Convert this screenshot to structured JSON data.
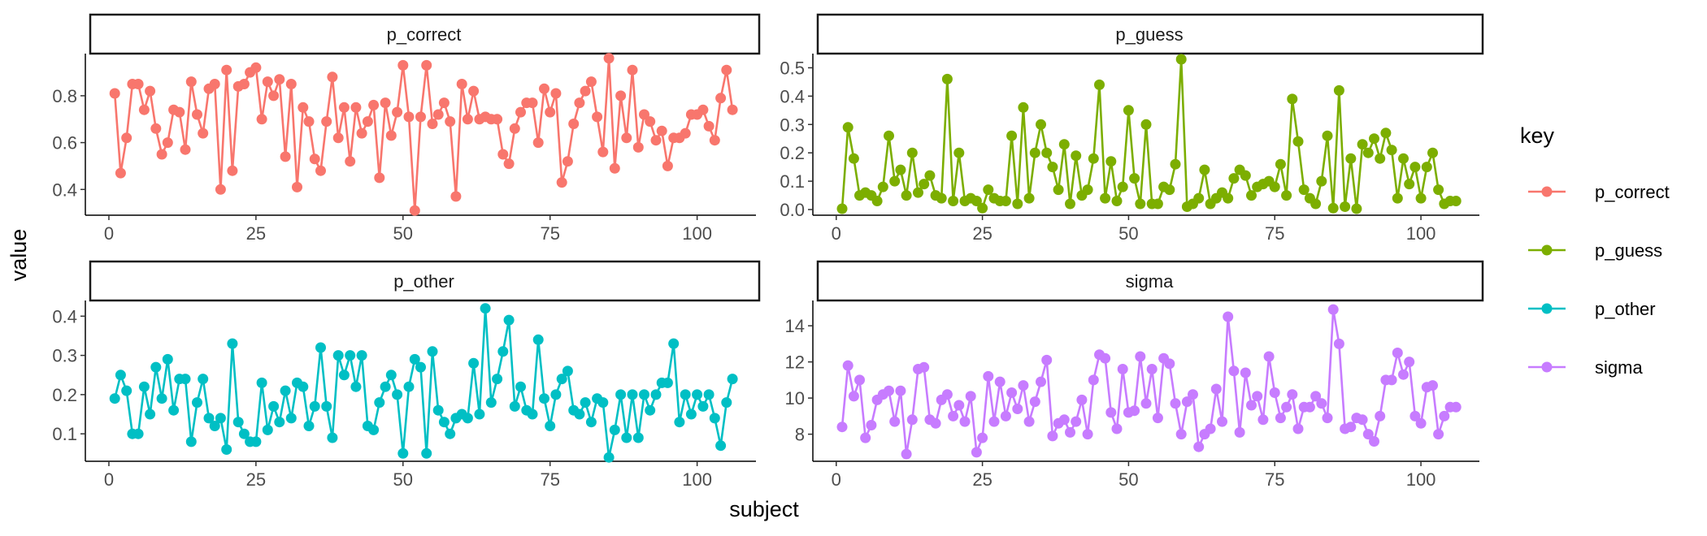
{
  "chart_data": {
    "type": "line",
    "layout": "facet_wrap",
    "xlabel": "subject",
    "ylabel": "value",
    "legend": {
      "title": "key",
      "position": "right"
    },
    "grid": false,
    "x": [
      1,
      2,
      3,
      4,
      5,
      6,
      7,
      8,
      9,
      10,
      11,
      12,
      13,
      14,
      15,
      16,
      17,
      18,
      19,
      20,
      21,
      22,
      23,
      24,
      25,
      26,
      27,
      28,
      29,
      30,
      31,
      32,
      33,
      34,
      35,
      36,
      37,
      38,
      39,
      40,
      41,
      42,
      43,
      44,
      45,
      46,
      47,
      48,
      49,
      50,
      51,
      52,
      53,
      54,
      55,
      56,
      57,
      58,
      59,
      60,
      61,
      62,
      63,
      64,
      65,
      66,
      67,
      68,
      69,
      70,
      71,
      72,
      73,
      74,
      75,
      76,
      77,
      78,
      79,
      80,
      81,
      82,
      83,
      84,
      85,
      86,
      87,
      88,
      89,
      90,
      91,
      92,
      93,
      94,
      95,
      96,
      97,
      98,
      99,
      100,
      101,
      102,
      103,
      104,
      105,
      106
    ],
    "facets": [
      {
        "strip": "p_correct",
        "series": "p_correct",
        "color": "#F8766D",
        "xlim": [
          -4,
          110
        ],
        "ylim": [
          0.29,
          0.98
        ],
        "xticks": [
          0,
          25,
          50,
          75,
          100
        ],
        "yticks": [
          0.4,
          0.6,
          0.8
        ],
        "ytick_labels": [
          "0.4",
          "0.6",
          "0.8"
        ],
        "values": [
          0.81,
          0.47,
          0.62,
          0.85,
          0.85,
          0.74,
          0.82,
          0.66,
          0.55,
          0.6,
          0.74,
          0.73,
          0.57,
          0.86,
          0.72,
          0.64,
          0.83,
          0.85,
          0.4,
          0.91,
          0.48,
          0.84,
          0.85,
          0.9,
          0.92,
          0.7,
          0.86,
          0.8,
          0.87,
          0.54,
          0.85,
          0.41,
          0.75,
          0.69,
          0.53,
          0.48,
          0.69,
          0.88,
          0.62,
          0.75,
          0.52,
          0.75,
          0.64,
          0.69,
          0.76,
          0.45,
          0.77,
          0.63,
          0.73,
          0.93,
          0.71,
          0.31,
          0.71,
          0.93,
          0.68,
          0.72,
          0.77,
          0.69,
          0.37,
          0.85,
          0.7,
          0.82,
          0.7,
          0.71,
          0.7,
          0.7,
          0.55,
          0.51,
          0.66,
          0.73,
          0.77,
          0.77,
          0.6,
          0.83,
          0.73,
          0.81,
          0.43,
          0.52,
          0.68,
          0.77,
          0.82,
          0.86,
          0.71,
          0.56,
          0.96,
          0.49,
          0.8,
          0.62,
          0.91,
          0.58,
          0.72,
          0.69,
          0.61,
          0.65,
          0.5,
          0.62,
          0.62,
          0.64,
          0.72,
          0.72,
          0.74,
          0.67,
          0.61,
          0.79,
          0.91,
          0.74
        ]
      },
      {
        "strip": "p_guess",
        "series": "p_guess",
        "color": "#7CAE00",
        "xlim": [
          -4,
          110
        ],
        "ylim": [
          -0.02,
          0.55
        ],
        "xticks": [
          0,
          25,
          50,
          75,
          100
        ],
        "yticks": [
          0.0,
          0.1,
          0.2,
          0.3,
          0.4,
          0.5
        ],
        "ytick_labels": [
          "0.0",
          "0.1",
          "0.2",
          "0.3",
          "0.4",
          "0.5"
        ],
        "values": [
          0.003,
          0.29,
          0.18,
          0.05,
          0.06,
          0.05,
          0.03,
          0.08,
          0.26,
          0.1,
          0.14,
          0.05,
          0.2,
          0.06,
          0.09,
          0.12,
          0.05,
          0.04,
          0.46,
          0.03,
          0.2,
          0.03,
          0.04,
          0.03,
          0.005,
          0.07,
          0.04,
          0.03,
          0.03,
          0.26,
          0.02,
          0.36,
          0.04,
          0.2,
          0.3,
          0.2,
          0.15,
          0.07,
          0.23,
          0.02,
          0.19,
          0.05,
          0.07,
          0.18,
          0.44,
          0.04,
          0.17,
          0.03,
          0.08,
          0.35,
          0.11,
          0.02,
          0.3,
          0.02,
          0.02,
          0.08,
          0.07,
          0.16,
          0.53,
          0.01,
          0.02,
          0.04,
          0.14,
          0.02,
          0.04,
          0.06,
          0.04,
          0.11,
          0.14,
          0.12,
          0.05,
          0.08,
          0.09,
          0.1,
          0.08,
          0.16,
          0.05,
          0.39,
          0.24,
          0.07,
          0.04,
          0.02,
          0.1,
          0.26,
          0.005,
          0.42,
          0.01,
          0.18,
          0.003,
          0.23,
          0.2,
          0.25,
          0.18,
          0.27,
          0.21,
          0.04,
          0.18,
          0.09,
          0.15,
          0.04,
          0.15,
          0.2,
          0.07,
          0.02,
          0.03,
          0.03
        ]
      },
      {
        "strip": "p_other",
        "series": "p_other",
        "color": "#00BFC4",
        "xlim": [
          -4,
          110
        ],
        "ylim": [
          0.03,
          0.44
        ],
        "xticks": [
          0,
          25,
          50,
          75,
          100
        ],
        "yticks": [
          0.1,
          0.2,
          0.3,
          0.4
        ],
        "ytick_labels": [
          "0.1",
          "0.2",
          "0.3",
          "0.4"
        ],
        "values": [
          0.19,
          0.25,
          0.21,
          0.1,
          0.1,
          0.22,
          0.15,
          0.27,
          0.19,
          0.29,
          0.16,
          0.24,
          0.24,
          0.08,
          0.18,
          0.24,
          0.14,
          0.12,
          0.14,
          0.06,
          0.33,
          0.13,
          0.1,
          0.08,
          0.08,
          0.23,
          0.11,
          0.17,
          0.13,
          0.21,
          0.14,
          0.23,
          0.22,
          0.12,
          0.17,
          0.32,
          0.17,
          0.09,
          0.3,
          0.25,
          0.3,
          0.22,
          0.3,
          0.12,
          0.11,
          0.18,
          0.22,
          0.25,
          0.2,
          0.05,
          0.22,
          0.29,
          0.27,
          0.05,
          0.31,
          0.16,
          0.13,
          0.1,
          0.14,
          0.15,
          0.14,
          0.28,
          0.15,
          0.42,
          0.18,
          0.24,
          0.31,
          0.39,
          0.17,
          0.22,
          0.16,
          0.15,
          0.34,
          0.19,
          0.12,
          0.2,
          0.24,
          0.26,
          0.16,
          0.15,
          0.18,
          0.13,
          0.19,
          0.18,
          0.04,
          0.11,
          0.2,
          0.09,
          0.2,
          0.09,
          0.2,
          0.16,
          0.2,
          0.23,
          0.23,
          0.33,
          0.13,
          0.2,
          0.15,
          0.2,
          0.17,
          0.2,
          0.14,
          0.07,
          0.18,
          0.24
        ]
      },
      {
        "strip": "sigma",
        "series": "sigma",
        "color": "#C77CFF",
        "xlim": [
          -4,
          110
        ],
        "ylim": [
          6.5,
          15.4
        ],
        "xticks": [
          0,
          25,
          50,
          75,
          100
        ],
        "yticks": [
          8,
          10,
          12,
          14
        ],
        "ytick_labels": [
          "8",
          "10",
          "12",
          "14"
        ],
        "values": [
          8.4,
          11.8,
          10.1,
          11.0,
          7.8,
          8.5,
          9.9,
          10.2,
          10.4,
          8.7,
          10.4,
          6.9,
          8.8,
          11.6,
          11.7,
          8.8,
          8.6,
          9.9,
          10.2,
          9.0,
          9.6,
          8.7,
          10.1,
          7.0,
          7.8,
          11.2,
          8.7,
          10.9,
          9.0,
          10.3,
          9.4,
          10.7,
          8.7,
          9.8,
          10.9,
          12.1,
          7.9,
          8.6,
          8.8,
          8.1,
          8.7,
          9.9,
          8.0,
          11.0,
          12.4,
          12.2,
          9.2,
          8.3,
          11.6,
          9.2,
          9.3,
          12.3,
          9.7,
          11.6,
          8.9,
          12.2,
          11.9,
          9.7,
          8.0,
          9.8,
          10.2,
          7.3,
          8.0,
          8.3,
          10.5,
          8.7,
          14.5,
          11.5,
          8.1,
          11.4,
          9.6,
          10.1,
          8.8,
          12.3,
          10.3,
          8.9,
          9.5,
          10.2,
          8.3,
          9.5,
          9.5,
          10.1,
          9.7,
          8.9,
          14.9,
          13.0,
          8.3,
          8.4,
          8.9,
          8.8,
          8.0,
          7.6,
          9.0,
          11.0,
          11.0,
          12.5,
          11.3,
          12.0,
          9.0,
          8.6,
          10.6,
          10.7,
          8.0,
          9.0,
          9.5,
          9.5
        ]
      }
    ]
  }
}
